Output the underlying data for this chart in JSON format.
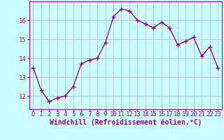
{
  "x": [
    0,
    1,
    2,
    3,
    4,
    5,
    6,
    7,
    8,
    9,
    10,
    11,
    12,
    13,
    14,
    15,
    16,
    17,
    18,
    19,
    20,
    21,
    22,
    23
  ],
  "y": [
    13.5,
    12.3,
    11.7,
    11.9,
    12.0,
    12.5,
    13.7,
    13.9,
    14.0,
    14.8,
    16.2,
    16.6,
    16.5,
    16.0,
    15.8,
    15.6,
    15.9,
    15.6,
    14.7,
    14.9,
    15.1,
    14.1,
    14.6,
    13.5
  ],
  "line_color": "#990099",
  "marker": "+",
  "markersize": 4,
  "linewidth": 1.0,
  "bg_color": "#ccffff",
  "grid_color": "#aacccc",
  "xlabel": "Windchill (Refroidissement éolien,°C)",
  "xlabel_fontsize": 7,
  "tick_fontsize": 6.5,
  "yticks": [
    12,
    13,
    14,
    15,
    16
  ],
  "ylim": [
    11.3,
    17.0
  ],
  "xlim": [
    -0.5,
    23.5
  ]
}
